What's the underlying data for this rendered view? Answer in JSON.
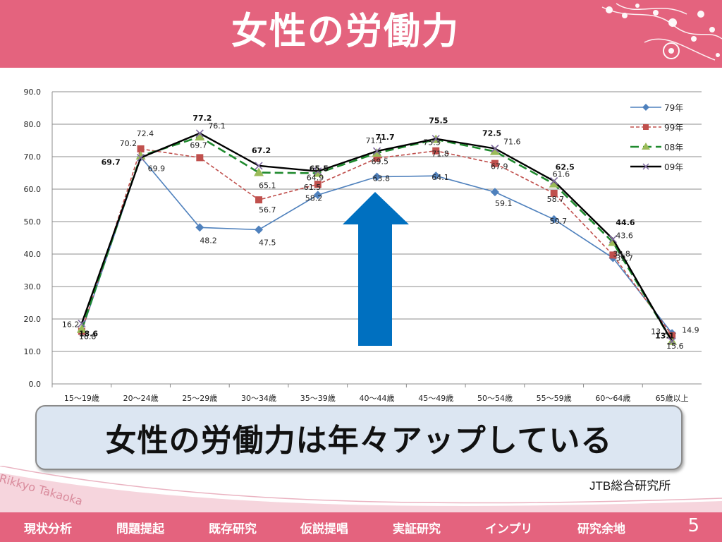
{
  "slide": {
    "title": "女性の労働力",
    "callout": "女性の労働力は年々アップしている",
    "source": "JTB総合研究所",
    "watermark": "Rikkyo Takaoka",
    "page_number": "5"
  },
  "nav": {
    "items": [
      "現状分析",
      "問題提起",
      "既存研究",
      "仮説提唱",
      "実証研究",
      "インプリ",
      "研究余地"
    ]
  },
  "colors": {
    "accent": "#e4637e",
    "s79": "#4f81bd",
    "s99": "#c0504d",
    "s08": "#1f8a2e",
    "s09": "#000000",
    "arrow": "#0070c0"
  },
  "chart_data": {
    "type": "line",
    "title": "",
    "xlabel": "",
    "ylabel": "",
    "ylim": [
      0,
      90
    ],
    "yticks": [
      "0.0",
      "10.0",
      "20.0",
      "30.0",
      "40.0",
      "50.0",
      "60.0",
      "70.0",
      "80.0",
      "90.0"
    ],
    "grid": true,
    "legend_position": "top-right",
    "categories": [
      "15～19歳",
      "20～24歳",
      "25～29歳",
      "30～34歳",
      "35～39歳",
      "40～44歳",
      "45～49歳",
      "50～54歳",
      "55～59歳",
      "60～64歳",
      "65歳以上"
    ],
    "series": [
      {
        "name": "79年",
        "values": [
          16.2,
          69.9,
          48.2,
          47.5,
          58.2,
          63.8,
          64.1,
          59.1,
          50.7,
          38.8,
          15.6
        ]
      },
      {
        "name": "99年",
        "values": [
          16.2,
          72.4,
          69.7,
          56.7,
          61.5,
          69.5,
          71.8,
          67.9,
          58.7,
          39.7,
          14.9
        ]
      },
      {
        "name": "08年",
        "values": [
          16.8,
          70.2,
          76.1,
          65.1,
          64.9,
          71.1,
          75.3,
          71.6,
          61.6,
          43.6,
          13.1
        ]
      },
      {
        "name": "09年",
        "values": [
          18.6,
          69.7,
          77.2,
          67.2,
          65.5,
          71.7,
          75.5,
          72.5,
          62.5,
          44.6,
          13.1
        ]
      }
    ],
    "annotations": {
      "s79": [
        "16.2",
        "69.9",
        "48.2",
        "47.5",
        "58.2",
        "63.8",
        "64.1",
        "59.1",
        "50.7",
        "38.8",
        "15.6"
      ],
      "s99": [
        "",
        "72.4",
        "69.7",
        "56.7",
        "61.5",
        "69.5",
        "71.8",
        "67.9",
        "58.7",
        "39.7",
        "14.9"
      ],
      "s08": [
        "16.8",
        "70.2",
        "76.1",
        "65.1",
        "64.9",
        "71.1",
        "75.3",
        "71.6",
        "61.6",
        "43.6",
        "13.1"
      ],
      "s09": [
        "18.6",
        "69.7",
        "77.2",
        "67.2",
        "65.5",
        "71.7",
        "75.5",
        "72.5",
        "62.5",
        "44.6",
        "13.1"
      ]
    }
  }
}
